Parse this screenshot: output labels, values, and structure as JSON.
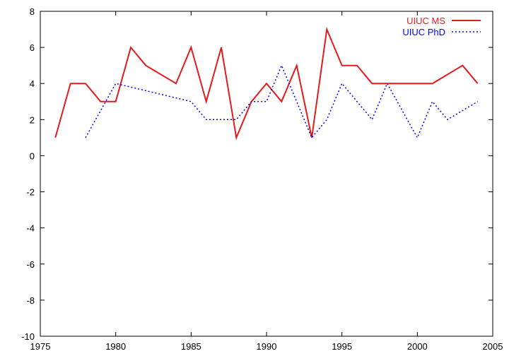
{
  "chart_data": {
    "type": "line",
    "title": "",
    "xlabel": "",
    "ylabel": "",
    "xlim": [
      1975,
      2005
    ],
    "ylim": [
      -10,
      8
    ],
    "xticks": [
      1975,
      1980,
      1985,
      1990,
      1995,
      2000,
      2005
    ],
    "yticks": [
      -10,
      -8,
      -6,
      -4,
      -2,
      0,
      2,
      4,
      6,
      8
    ],
    "xtick_labels": [
      "1975",
      "1980",
      "1985",
      "1990",
      "1995",
      "2000",
      "2005"
    ],
    "ytick_labels": [
      "-10",
      "-8",
      "-6",
      "-4",
      "-2",
      "0",
      "2",
      "4",
      "6",
      "8"
    ],
    "grid": false,
    "legend_position": "top-right",
    "series": [
      {
        "name": "UIUC MS",
        "color": "#e41a1c",
        "style": "solid",
        "x": [
          1976,
          1977,
          1978,
          1979,
          1980,
          1981,
          1982,
          1984,
          1985,
          1986,
          1987,
          1988,
          1989,
          1990,
          1991,
          1992,
          1993,
          1994,
          1995,
          1996,
          1997,
          2001,
          2003,
          2004
        ],
        "y": [
          1,
          4,
          4,
          3,
          3,
          6,
          5,
          4,
          6,
          3,
          6,
          1,
          3,
          4,
          3,
          5,
          1,
          7,
          5,
          5,
          4,
          4,
          5,
          4
        ]
      },
      {
        "name": "UIUC PhD",
        "color": "#0000ff",
        "style": "dotted",
        "x": [
          1978,
          1980,
          1985,
          1986,
          1988,
          1989,
          1990,
          1991,
          1993,
          1994,
          1995,
          1997,
          1998,
          2000,
          2001,
          2002,
          2004
        ],
        "y": [
          1,
          4,
          3,
          2,
          2,
          3,
          3,
          5,
          1,
          2,
          4,
          2,
          4,
          1,
          3,
          2,
          3
        ]
      }
    ]
  }
}
